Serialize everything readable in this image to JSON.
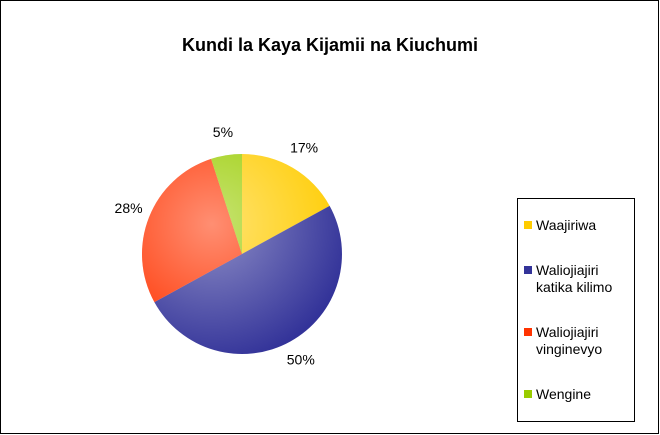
{
  "chart_data": {
    "type": "pie",
    "title": "Kundi la Kaya Kijamii na Kiuchumi",
    "categories": [
      "Waajiriwa",
      "Waliojiajiri katika kilimo",
      "Waliojiajiri vinginevyo",
      "Wengine"
    ],
    "values": [
      17,
      50,
      28,
      5
    ],
    "value_labels": [
      "17%",
      "50%",
      "28%",
      "5%"
    ],
    "colors": [
      "#ffcc00",
      "#333399",
      "#ff3300",
      "#99cc00"
    ],
    "legend": "right"
  }
}
